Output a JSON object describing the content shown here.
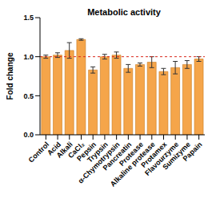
{
  "chart_data": {
    "type": "bar",
    "title": "Metabolic activity",
    "y_label": "Fold change",
    "categories": [
      "Control",
      "Acid",
      "Alkali",
      "CaCl₂",
      "Pepsin",
      "Trypsin",
      "α-Chymotrypsin",
      "Pancreatin",
      "Protease",
      "Alkaline protease",
      "Protamex",
      "Flavourzyme",
      "Sumizyme",
      "Papain"
    ],
    "values": [
      1.0,
      1.02,
      1.08,
      1.22,
      0.83,
      1.0,
      1.02,
      0.85,
      0.9,
      0.93,
      0.81,
      0.86,
      0.9,
      0.97
    ],
    "error": [
      0.02,
      0.03,
      0.1,
      0.01,
      0.04,
      0.03,
      0.04,
      0.05,
      0.02,
      0.07,
      0.04,
      0.08,
      0.05,
      0.03
    ],
    "reference_line": 1,
    "color": "#f5a54a",
    "ylim": [
      0,
      1.5
    ],
    "yticks": [
      {
        "value": 0,
        "label": "0.0"
      },
      {
        "value": 0.5,
        "label": "0.5"
      },
      {
        "value": 1,
        "label": "1.0"
      },
      {
        "value": 1.5,
        "label": "1.5"
      }
    ],
    "grid": false
  }
}
